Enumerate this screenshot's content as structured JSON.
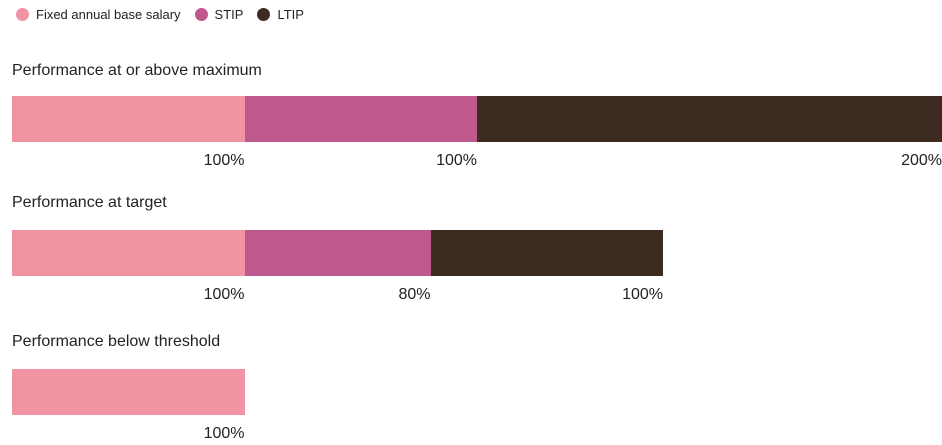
{
  "legend": [
    {
      "label": "Fixed annual base salary",
      "color": "#f093a3"
    },
    {
      "label": "STIP",
      "color": "#bf588c"
    },
    {
      "label": "LTIP",
      "color": "#3d2b21"
    }
  ],
  "chart_data": [
    {
      "type": "bar",
      "orientation": "horizontal-stacked",
      "title": "Performance at or above maximum",
      "series": [
        {
          "name": "Fixed annual base salary",
          "value": 100,
          "label": "100%"
        },
        {
          "name": "STIP",
          "value": 100,
          "label": "100%"
        },
        {
          "name": "LTIP",
          "value": 200,
          "label": "200%"
        }
      ]
    },
    {
      "type": "bar",
      "orientation": "horizontal-stacked",
      "title": "Performance at target",
      "series": [
        {
          "name": "Fixed annual base salary",
          "value": 100,
          "label": "100%"
        },
        {
          "name": "STIP",
          "value": 80,
          "label": "80%"
        },
        {
          "name": "LTIP",
          "value": 100,
          "label": "100%"
        }
      ]
    },
    {
      "type": "bar",
      "orientation": "horizontal-stacked",
      "title": "Performance below threshold",
      "series": [
        {
          "name": "Fixed annual base salary",
          "value": 100,
          "label": "100%"
        }
      ]
    }
  ]
}
